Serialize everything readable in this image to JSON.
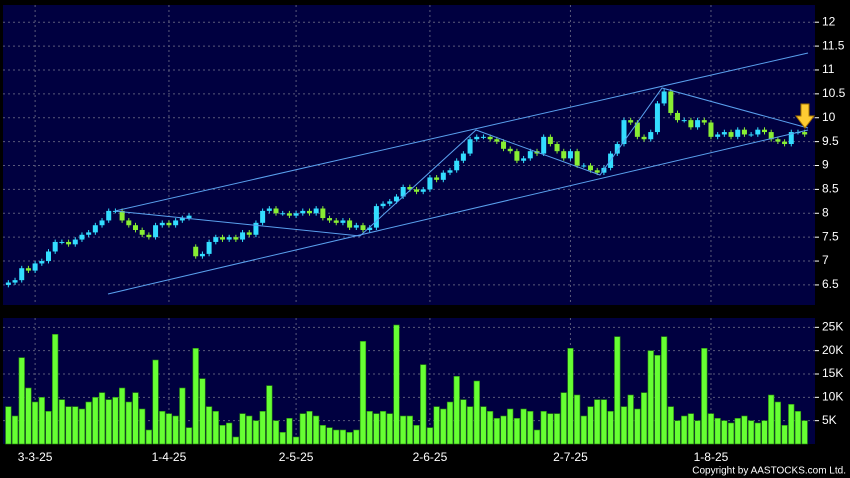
{
  "chart_data": [
    {
      "type": "candlestick",
      "open": [
        6.5,
        6.55,
        6.6,
        6.85,
        6.8,
        6.95,
        7.0,
        7.2,
        7.4,
        7.4,
        7.35,
        7.45,
        7.55,
        7.6,
        7.75,
        7.85,
        8.05,
        8.05,
        7.85,
        7.75,
        7.65,
        7.55,
        7.5,
        7.75,
        7.8,
        7.75,
        7.85,
        7.9,
        7.3,
        7.1,
        7.15,
        7.4,
        7.5,
        7.45,
        7.5,
        7.45,
        7.6,
        7.55,
        7.8,
        8.05,
        8.1,
        8.0,
        8.0,
        7.95,
        8.0,
        8.05,
        8.0,
        8.1,
        7.9,
        7.85,
        7.8,
        7.85,
        7.7,
        7.75,
        7.65,
        7.7,
        8.15,
        8.2,
        8.25,
        8.35,
        8.55,
        8.5,
        8.45,
        8.5,
        8.75,
        8.7,
        8.85,
        8.9,
        9.1,
        9.25,
        9.55,
        9.6,
        9.6,
        9.55,
        9.5,
        9.35,
        9.3,
        9.1,
        9.15,
        9.3,
        9.25,
        9.6,
        9.45,
        9.3,
        9.15,
        9.3,
        9.0,
        9.0,
        8.9,
        8.85,
        8.95,
        9.25,
        9.45,
        9.95,
        9.9,
        9.6,
        9.55,
        9.7,
        10.3,
        10.55,
        10.1,
        9.95,
        9.95,
        9.8,
        9.95,
        9.9,
        9.6,
        9.65,
        9.7,
        9.6,
        9.75,
        9.65,
        9.65,
        9.75,
        9.7,
        9.55,
        9.5,
        9.45,
        9.7,
        9.7
      ],
      "high": [
        6.6,
        6.65,
        6.9,
        6.9,
        7.0,
        7.05,
        7.25,
        7.45,
        7.45,
        7.45,
        7.5,
        7.6,
        7.65,
        7.8,
        7.9,
        8.1,
        8.1,
        8.1,
        7.9,
        7.8,
        7.7,
        7.6,
        7.8,
        7.85,
        7.85,
        7.9,
        7.95,
        8.0,
        7.35,
        7.2,
        7.45,
        7.55,
        7.55,
        7.55,
        7.55,
        7.65,
        7.65,
        7.85,
        8.1,
        8.15,
        8.15,
        8.05,
        8.05,
        8.05,
        8.1,
        8.1,
        8.15,
        8.15,
        7.95,
        7.9,
        7.9,
        7.9,
        7.8,
        7.8,
        7.75,
        8.2,
        8.25,
        8.3,
        8.4,
        8.6,
        8.6,
        8.55,
        8.55,
        8.8,
        8.8,
        8.9,
        8.95,
        9.15,
        9.3,
        9.6,
        9.65,
        9.65,
        9.65,
        9.6,
        9.55,
        9.4,
        9.35,
        9.2,
        9.35,
        9.35,
        9.65,
        9.65,
        9.5,
        9.35,
        9.35,
        9.35,
        9.05,
        9.05,
        8.95,
        9.0,
        9.3,
        9.5,
        10.0,
        10.0,
        9.95,
        9.65,
        9.75,
        10.35,
        10.6,
        10.6,
        10.15,
        10.0,
        10.0,
        10.0,
        10.0,
        9.95,
        9.7,
        9.75,
        9.75,
        9.8,
        9.8,
        9.7,
        9.8,
        9.8,
        9.75,
        9.6,
        9.55,
        9.75,
        9.75,
        9.75
      ],
      "low": [
        6.45,
        6.5,
        6.55,
        6.75,
        6.75,
        6.9,
        6.95,
        7.15,
        7.35,
        7.3,
        7.3,
        7.4,
        7.5,
        7.55,
        7.7,
        7.8,
        8.0,
        7.8,
        7.7,
        7.6,
        7.5,
        7.45,
        7.45,
        7.7,
        7.7,
        7.7,
        7.8,
        7.85,
        7.05,
        7.05,
        7.1,
        7.35,
        7.4,
        7.4,
        7.4,
        7.4,
        7.5,
        7.5,
        7.75,
        8.0,
        7.95,
        7.95,
        7.9,
        7.9,
        7.95,
        7.95,
        7.95,
        7.85,
        7.8,
        7.75,
        7.75,
        7.65,
        7.65,
        7.6,
        7.6,
        7.65,
        8.1,
        8.15,
        8.2,
        8.3,
        8.45,
        8.4,
        8.4,
        8.45,
        8.65,
        8.65,
        8.8,
        8.85,
        9.05,
        9.2,
        9.5,
        9.55,
        9.5,
        9.45,
        9.3,
        9.25,
        9.05,
        9.05,
        9.1,
        9.2,
        9.2,
        9.4,
        9.25,
        9.1,
        9.1,
        8.95,
        8.95,
        8.85,
        8.8,
        8.8,
        8.9,
        9.2,
        9.4,
        9.85,
        9.55,
        9.5,
        9.5,
        9.65,
        10.25,
        10.05,
        9.9,
        9.9,
        9.75,
        9.75,
        9.85,
        9.55,
        9.55,
        9.6,
        9.55,
        9.55,
        9.6,
        9.6,
        9.6,
        9.65,
        9.5,
        9.45,
        9.4,
        9.4,
        9.65,
        9.6
      ],
      "close": [
        6.55,
        6.6,
        6.85,
        6.8,
        6.95,
        7.0,
        7.2,
        7.4,
        7.4,
        7.35,
        7.45,
        7.55,
        7.6,
        7.75,
        7.85,
        8.05,
        8.05,
        7.85,
        7.75,
        7.65,
        7.55,
        7.5,
        7.75,
        7.8,
        7.75,
        7.85,
        7.9,
        7.95,
        7.1,
        7.15,
        7.4,
        7.5,
        7.45,
        7.5,
        7.45,
        7.6,
        7.55,
        7.8,
        8.05,
        8.1,
        8.0,
        8.0,
        7.95,
        8.0,
        8.05,
        8.0,
        8.1,
        7.9,
        7.85,
        7.8,
        7.85,
        7.7,
        7.75,
        7.65,
        7.7,
        8.15,
        8.2,
        8.25,
        8.35,
        8.55,
        8.5,
        8.45,
        8.5,
        8.75,
        8.7,
        8.85,
        8.9,
        9.1,
        9.25,
        9.55,
        9.6,
        9.6,
        9.55,
        9.5,
        9.35,
        9.3,
        9.1,
        9.15,
        9.3,
        9.25,
        9.6,
        9.45,
        9.3,
        9.15,
        9.3,
        9.0,
        9.0,
        8.9,
        8.85,
        8.95,
        9.25,
        9.45,
        9.95,
        9.9,
        9.6,
        9.55,
        9.7,
        10.3,
        10.55,
        10.1,
        9.95,
        9.95,
        9.8,
        9.95,
        9.9,
        9.6,
        9.65,
        9.7,
        9.6,
        9.75,
        9.65,
        9.65,
        9.75,
        9.7,
        9.55,
        9.5,
        9.45,
        9.7,
        9.7,
        9.65
      ],
      "up_color": "#33ddff",
      "down_color": "#88ee33",
      "ylim": [
        6.08,
        12.36
      ],
      "yticks": [
        6.5,
        7,
        7.5,
        8,
        8.5,
        9,
        9.5,
        10,
        10.5,
        11,
        11.5,
        12
      ],
      "grid": true
    },
    {
      "type": "bar",
      "categories": [
        null,
        null,
        null,
        null,
        "3-3-25",
        null,
        null,
        null,
        null,
        null,
        null,
        null,
        null,
        null,
        null,
        null,
        null,
        null,
        null,
        null,
        null,
        null,
        null,
        null,
        "1-4-25",
        null,
        null,
        null,
        null,
        null,
        null,
        null,
        null,
        null,
        null,
        null,
        null,
        null,
        null,
        null,
        null,
        null,
        null,
        "2-5-25",
        null,
        null,
        null,
        null,
        null,
        null,
        null,
        null,
        null,
        null,
        null,
        null,
        null,
        null,
        null,
        null,
        null,
        null,
        null,
        "2-6-25",
        null,
        null,
        null,
        null,
        null,
        null,
        null,
        null,
        null,
        null,
        null,
        null,
        null,
        null,
        null,
        null,
        null,
        null,
        null,
        null,
        "2-7-25",
        null,
        null,
        null,
        null,
        null,
        null,
        null,
        null,
        null,
        null,
        null,
        null,
        null,
        null,
        null,
        null,
        null,
        null,
        null,
        null,
        "1-8-25",
        null,
        null,
        null,
        null,
        null,
        null,
        null,
        null,
        null,
        null,
        null,
        null,
        null,
        null
      ],
      "values": [
        8000,
        6000,
        18500,
        12000,
        9000,
        10000,
        7000,
        23500,
        9500,
        8000,
        8000,
        7500,
        9000,
        10000,
        11000,
        9500,
        10000,
        12000,
        9000,
        11000,
        7500,
        3000,
        18000,
        7000,
        6500,
        6000,
        12000,
        3500,
        20500,
        14000,
        8000,
        7000,
        4000,
        4500,
        1500,
        6500,
        6000,
        5000,
        7000,
        12500,
        5000,
        2500,
        5500,
        1500,
        6500,
        7000,
        6000,
        4000,
        3500,
        3000,
        3000,
        2500,
        3000,
        22000,
        7000,
        6500,
        7000,
        6500,
        25500,
        6000,
        6000,
        4000,
        17000,
        3500,
        8000,
        7500,
        9000,
        14500,
        9500,
        8000,
        13500,
        8000,
        7000,
        5500,
        6000,
        7500,
        5500,
        7500,
        7000,
        3000,
        7000,
        6500,
        6500,
        11000,
        20500,
        10500,
        6000,
        8000,
        9500,
        9500,
        7000,
        23000,
        8000,
        10500,
        7500,
        11000,
        20000,
        19000,
        23000,
        8000,
        5000,
        6000,
        6500,
        5000,
        20500,
        6500,
        5500,
        5000,
        4500,
        5500,
        6000,
        5000,
        4500,
        5000,
        10500,
        9000,
        4000,
        8500,
        7000,
        5000
      ],
      "color": "#66ff33",
      "ylim": [
        0,
        27000
      ],
      "yticks": [
        {
          "value": 5000,
          "label": "5K"
        },
        {
          "value": 10000,
          "label": "10K"
        },
        {
          "value": 15000,
          "label": "15K"
        },
        {
          "value": 20000,
          "label": "20K"
        },
        {
          "value": 25000,
          "label": "25K"
        }
      ],
      "grid": true,
      "copyright": "Copyright by AASTOCKS.com Ltd."
    }
  ]
}
